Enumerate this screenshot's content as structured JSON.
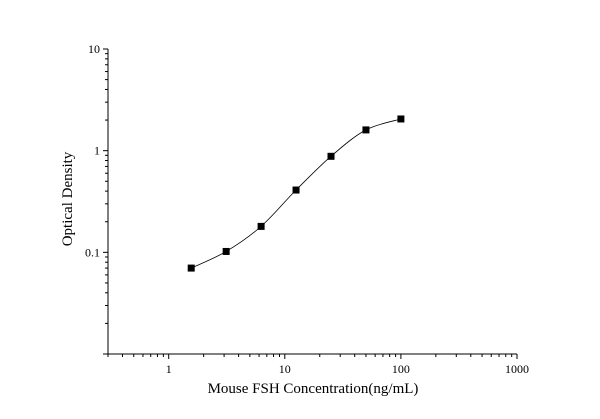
{
  "chart_data": {
    "type": "scatter",
    "title": "",
    "xlabel": "Mouse FSH Concentration(ng/mL)",
    "ylabel": "Optical Density",
    "x_scale": "log",
    "y_scale": "log",
    "xlim": [
      0.3,
      1000
    ],
    "ylim": [
      0.01,
      10
    ],
    "x_tick_labels": [
      "1",
      "10",
      "100",
      "1000"
    ],
    "y_tick_labels": [
      "0.1",
      "1",
      "10"
    ],
    "grid": false,
    "legend": "none",
    "marker": "square",
    "fit_line": "smooth curve through standards",
    "series": [
      {
        "x": [
          1.5625,
          3.125,
          6.25,
          12.5,
          25,
          50,
          100
        ],
        "y": [
          0.07,
          0.102,
          0.18,
          0.41,
          0.88,
          1.6,
          2.05
        ]
      }
    ],
    "colors": {
      "points": "#000000",
      "curve": "#000000",
      "axes": "#000000"
    }
  }
}
